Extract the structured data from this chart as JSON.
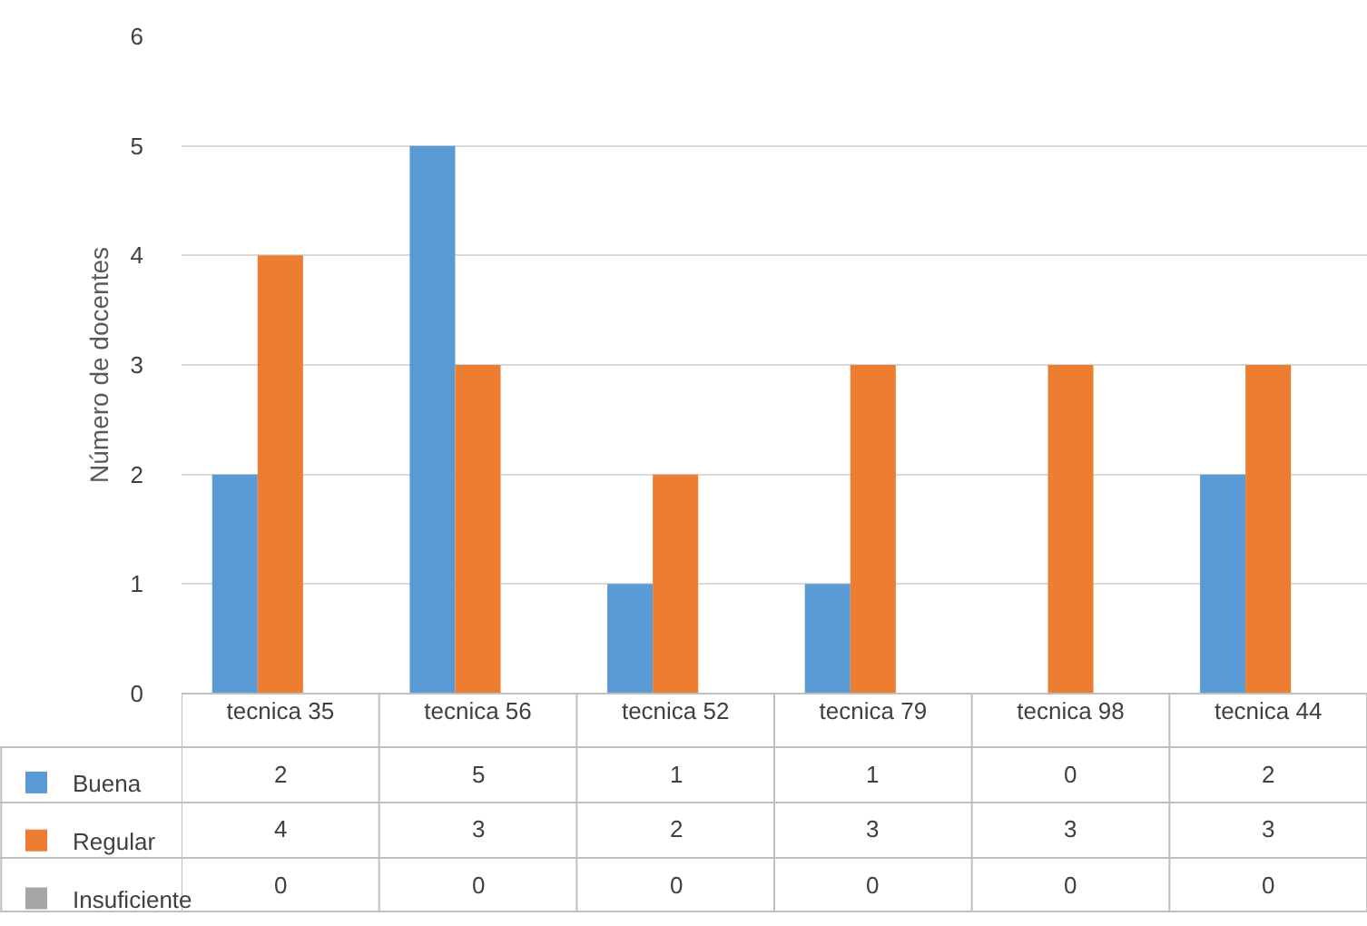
{
  "chart_data": {
    "type": "bar",
    "ylabel": "Número de docentes",
    "categories": [
      "tecnica 35",
      "tecnica 56",
      "tecnica 52",
      "tecnica 79",
      "tecnica 98",
      "tecnica 44"
    ],
    "series": [
      {
        "name": "Buena",
        "color": "#5b9bd5",
        "values": [
          2,
          5,
          1,
          1,
          0,
          2
        ]
      },
      {
        "name": "Regular",
        "color": "#ed7d31",
        "values": [
          4,
          3,
          2,
          3,
          3,
          3
        ]
      },
      {
        "name": "Insuficiente",
        "color": "#a5a5a5",
        "values": [
          0,
          0,
          0,
          0,
          0,
          0
        ]
      }
    ],
    "ylim": [
      0,
      6
    ],
    "yticks": [
      0,
      1,
      2,
      3,
      4,
      5,
      6
    ],
    "grid": "y",
    "legend": "bottom",
    "data_labels": true
  }
}
